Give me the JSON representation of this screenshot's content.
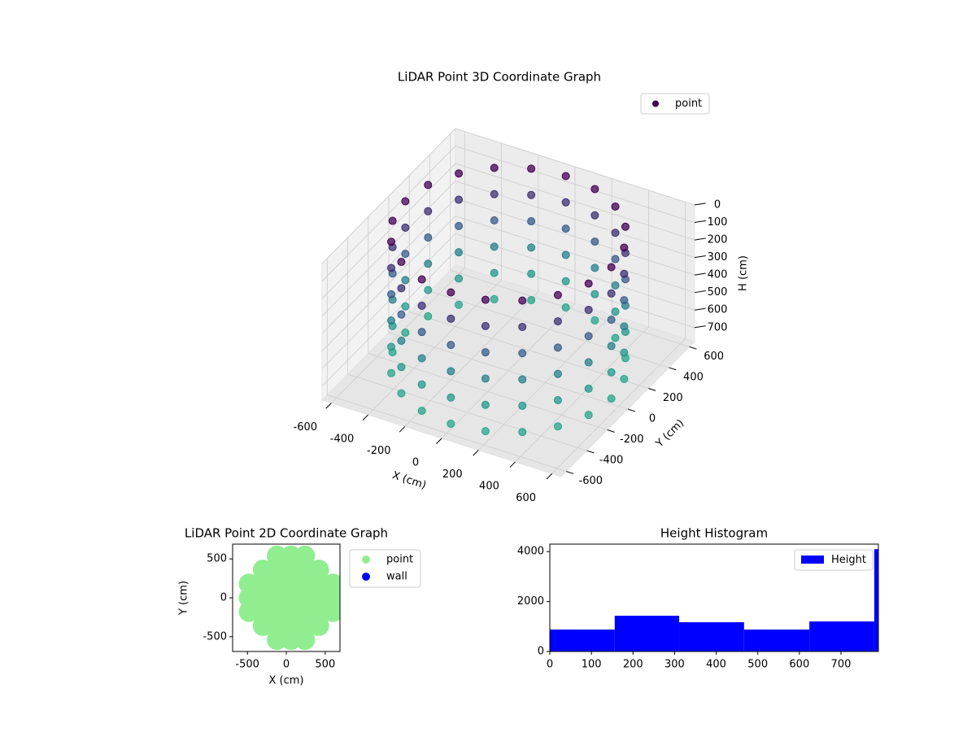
{
  "chart_data": [
    {
      "type": "scatter3d",
      "title": "LiDAR Point 3D Coordinate Graph",
      "xlabel": "X (cm)",
      "ylabel": "Y (cm)",
      "zlabel": "H (cm)",
      "xlim": [
        -650,
        650
      ],
      "ylim": [
        -650,
        650
      ],
      "zlim": [
        780,
        0
      ],
      "xticks": [
        -600,
        -400,
        -200,
        0,
        200,
        400,
        600
      ],
      "yticks": [
        -600,
        -400,
        -200,
        0,
        200,
        400,
        600
      ],
      "zticks": [
        0,
        100,
        200,
        300,
        400,
        500,
        600,
        700
      ],
      "legend": "upper right",
      "grid": true,
      "color_range": [
        "#440154",
        "#3b528b",
        "#21918c",
        "#27a88a"
      ],
      "series": [
        {
          "name": "point",
          "color": "#440154",
          "x": [
            560,
            533,
            453,
            329,
            173,
            0,
            -173,
            -329,
            -453,
            -533,
            -560,
            -533,
            -453,
            -329,
            -173,
            0,
            173,
            329,
            453,
            533,
            560,
            533,
            453,
            329,
            173,
            0,
            -173,
            -329,
            -453,
            -533,
            -560,
            -533,
            -453,
            -329,
            -173,
            0,
            173,
            329,
            453,
            533,
            560,
            533,
            453,
            329,
            173,
            0,
            -173,
            -329,
            -453,
            -533,
            -560,
            -533,
            -453,
            -329,
            -173,
            0,
            173,
            329,
            453,
            533,
            560,
            533,
            453,
            329,
            173,
            0,
            -173,
            -329,
            -453,
            -533,
            -560,
            -533,
            -453,
            -329,
            -173,
            0,
            173,
            329,
            453,
            533,
            560,
            533,
            453,
            329,
            173,
            0,
            -173,
            -329,
            -453,
            -533,
            -560,
            -533,
            -453,
            -329,
            -173,
            0,
            173,
            329,
            453,
            533,
            560,
            533,
            453,
            329,
            173,
            0,
            -173,
            -329,
            -453,
            -533,
            -560,
            -533,
            -453,
            -329,
            -173,
            0,
            173,
            329,
            453,
            533
          ],
          "y": [
            0,
            173,
            329,
            453,
            533,
            560,
            533,
            453,
            329,
            173,
            0,
            -173,
            -329,
            -453,
            -533,
            -560,
            -533,
            -453,
            -329,
            -173,
            0,
            173,
            329,
            453,
            533,
            560,
            533,
            453,
            329,
            173,
            0,
            -173,
            -329,
            -453,
            -533,
            -560,
            -533,
            -453,
            -329,
            -173,
            0,
            173,
            329,
            453,
            533,
            560,
            533,
            453,
            329,
            173,
            0,
            -173,
            -329,
            -453,
            -533,
            -560,
            -533,
            -453,
            -329,
            -173,
            0,
            173,
            329,
            453,
            533,
            560,
            533,
            453,
            329,
            173,
            0,
            -173,
            -329,
            -453,
            -533,
            -560,
            -533,
            -453,
            -329,
            -173,
            0,
            173,
            329,
            453,
            533,
            560,
            533,
            453,
            329,
            173,
            0,
            -173,
            -329,
            -453,
            -533,
            -560,
            -533,
            -453,
            -329,
            -173,
            0,
            173,
            329,
            453,
            533,
            560,
            533,
            453,
            329,
            173,
            0,
            -173,
            -329,
            -453,
            -533,
            -560,
            -533,
            -453,
            -329,
            -173
          ],
          "h": [
            0,
            0,
            0,
            0,
            0,
            0,
            0,
            0,
            0,
            0,
            0,
            0,
            0,
            0,
            0,
            0,
            0,
            0,
            0,
            0,
            150,
            150,
            150,
            150,
            150,
            150,
            150,
            150,
            150,
            150,
            150,
            150,
            150,
            150,
            150,
            150,
            150,
            150,
            150,
            150,
            300,
            300,
            300,
            300,
            300,
            300,
            300,
            300,
            300,
            300,
            300,
            300,
            300,
            300,
            300,
            300,
            300,
            300,
            300,
            300,
            450,
            450,
            450,
            450,
            450,
            450,
            450,
            450,
            450,
            450,
            450,
            450,
            450,
            450,
            450,
            450,
            450,
            450,
            450,
            450,
            600,
            600,
            600,
            600,
            600,
            600,
            600,
            600,
            600,
            600,
            600,
            600,
            600,
            600,
            600,
            600,
            600,
            600,
            600,
            600,
            750,
            750,
            750,
            750,
            750,
            750,
            750,
            750,
            750,
            750,
            750,
            750,
            750,
            750,
            750,
            750,
            750,
            750,
            750,
            750
          ]
        }
      ]
    },
    {
      "type": "scatter",
      "title": "LiDAR Point 2D Coordinate Graph",
      "xlabel": "X (cm)",
      "ylabel": "Y (cm)",
      "xlim": [
        -690,
        690
      ],
      "ylim": [
        -690,
        690
      ],
      "xticks": [
        -500,
        0,
        500
      ],
      "yticks": [
        -500,
        0,
        500
      ],
      "legend": "outside right",
      "series": [
        {
          "name": "point",
          "color": "#90ee90",
          "x": [
            -480,
            -480,
            -480,
            -300,
            -300,
            -300,
            -300,
            -300,
            -120,
            -120,
            -120,
            -120,
            -120,
            -120,
            -120,
            60,
            60,
            60,
            60,
            60,
            60,
            60,
            240,
            240,
            240,
            240,
            240,
            240,
            240,
            420,
            420,
            420,
            420,
            420,
            600,
            600,
            600
          ],
          "y": [
            -180,
            0,
            180,
            -360,
            -180,
            0,
            180,
            360,
            -540,
            -360,
            -180,
            0,
            180,
            360,
            540,
            -540,
            -360,
            -180,
            0,
            180,
            360,
            540,
            -540,
            -360,
            -180,
            0,
            180,
            360,
            540,
            -360,
            -180,
            0,
            180,
            360,
            -180,
            0,
            180
          ]
        },
        {
          "name": "wall",
          "color": "#0000ff",
          "x": [],
          "y": []
        }
      ]
    },
    {
      "type": "histogram",
      "title": "Height Histogram",
      "name": "Height",
      "color": "#0000ff",
      "bins": [
        0,
        156,
        311,
        467,
        624,
        780,
        790
      ],
      "values": [
        878,
        1431,
        1171,
        878,
        1203,
        4098
      ],
      "xlim": [
        0,
        790
      ],
      "ylim": [
        0,
        4300
      ],
      "xticks": [
        0,
        100,
        200,
        300,
        400,
        500,
        600,
        700
      ],
      "yticks": [
        0,
        2000,
        4000
      ],
      "legend": "upper right"
    }
  ]
}
